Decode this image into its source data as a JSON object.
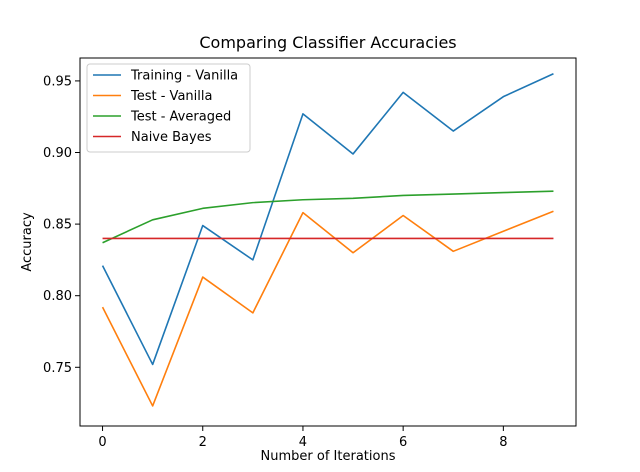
{
  "chart_data": {
    "type": "line",
    "title": "Comparing Classifier Accuracies",
    "xlabel": "Number of Iterations",
    "ylabel": "Accuracy",
    "xlim": [
      -0.45,
      9.45
    ],
    "ylim": [
      0.709,
      0.966
    ],
    "xticks": [
      0,
      2,
      4,
      6,
      8
    ],
    "yticks": [
      0.75,
      0.8,
      0.85,
      0.9,
      0.95
    ],
    "xtick_labels": [
      "0",
      "2",
      "4",
      "6",
      "8"
    ],
    "ytick_labels": [
      "0.75",
      "0.80",
      "0.85",
      "0.90",
      "0.95"
    ],
    "grid": false,
    "legend_position": "top-left",
    "x": [
      0,
      1,
      2,
      3,
      4,
      5,
      6,
      7,
      8,
      9
    ],
    "series": [
      {
        "name": "Training - Vanilla",
        "color": "#1f77b4",
        "values": [
          0.821,
          0.752,
          0.849,
          0.825,
          0.927,
          0.899,
          0.942,
          0.915,
          0.939,
          0.955
        ]
      },
      {
        "name": "Test - Vanilla",
        "color": "#ff7f0e",
        "values": [
          0.792,
          0.723,
          0.813,
          0.788,
          0.858,
          0.83,
          0.856,
          0.831,
          0.845,
          0.859
        ]
      },
      {
        "name": "Test - Averaged",
        "color": "#2ca02c",
        "values": [
          0.837,
          0.853,
          0.861,
          0.865,
          0.867,
          0.868,
          0.87,
          0.871,
          0.872,
          0.873
        ]
      },
      {
        "name": "Naive Bayes",
        "color": "#d62728",
        "values": [
          0.84,
          0.84,
          0.84,
          0.84,
          0.84,
          0.84,
          0.84,
          0.84,
          0.84,
          0.84
        ]
      }
    ]
  }
}
